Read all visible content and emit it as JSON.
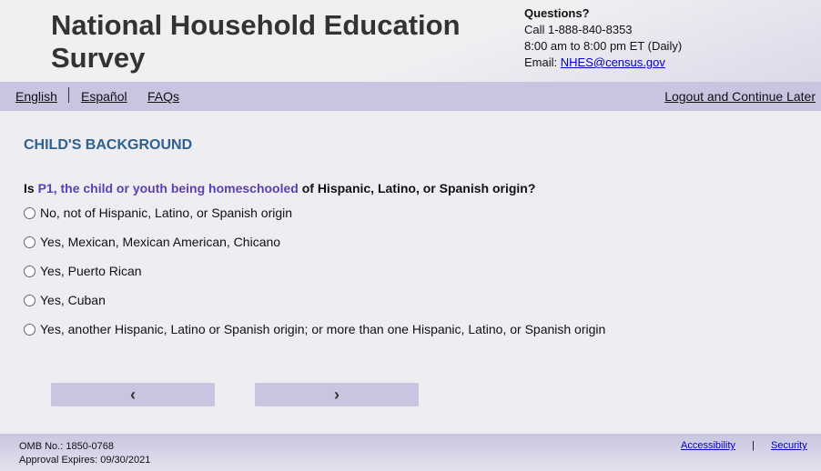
{
  "header": {
    "title": "National Household Education Survey",
    "questions_label": "Questions?",
    "phone": "Call 1-888-840-8353",
    "hours": "8:00 am to 8:00 pm ET (Daily)",
    "email_label": "Email:",
    "email": "NHES@census.gov"
  },
  "nav": {
    "english": "English",
    "espanol": "Español",
    "faqs": "FAQs",
    "logout": "Logout and Continue Later"
  },
  "main": {
    "section": "CHILD'S BACKGROUND",
    "question_pre": "Is",
    "question_highlight": "P1, the child or youth being homeschooled",
    "question_post": "of Hispanic, Latino, or Spanish origin?",
    "options": [
      "No, not of Hispanic, Latino, or Spanish origin",
      "Yes, Mexican, Mexican American, Chicano",
      "Yes, Puerto Rican",
      "Yes, Cuban",
      "Yes, another Hispanic, Latino or Spanish origin; or more than one Hispanic, Latino, or Spanish origin"
    ],
    "prev": "‹",
    "next": "›"
  },
  "footer": {
    "omb": "OMB No.: 1850-0768",
    "expires": "Approval Expires: 09/30/2021",
    "accessibility": "Accessibility",
    "sep": "|",
    "security": "Security"
  }
}
